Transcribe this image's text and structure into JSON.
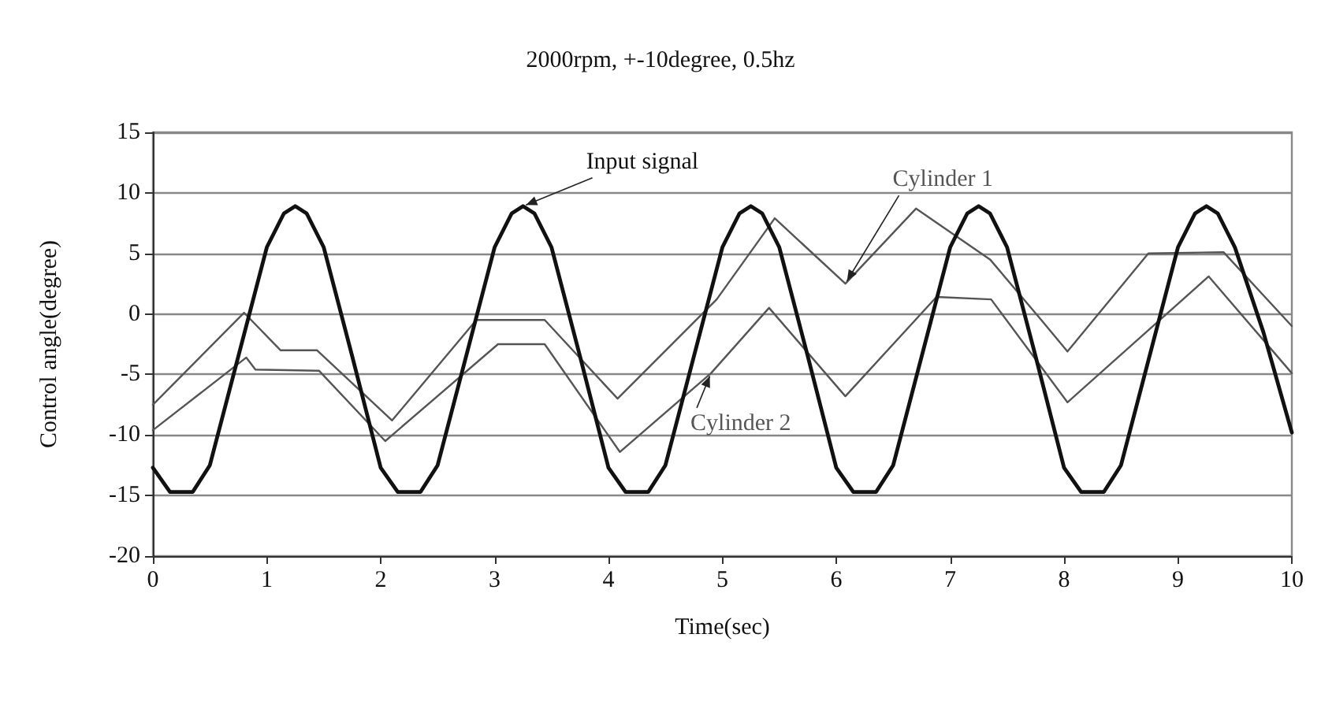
{
  "chart_data": {
    "type": "line",
    "title": "2000rpm, +-10degree, 0.5hz",
    "xlabel": "Time(sec)",
    "ylabel": "Control angle(degree)",
    "xlim": [
      0,
      10
    ],
    "xticks": [
      0,
      1,
      2,
      3,
      4,
      5,
      6,
      7,
      8,
      9,
      10
    ],
    "ylim": [
      -20,
      15
    ],
    "yticks": [
      -20,
      -15,
      -10,
      -5,
      0,
      5,
      10,
      15
    ],
    "grid": "y",
    "legend": false,
    "marker": "none",
    "line_style": "solid",
    "series": [
      {
        "name": "Input signal",
        "color": "#111111",
        "x": [
          0,
          0.15,
          0.35,
          0.5,
          0.75,
          1,
          1.15,
          1.25,
          1.35,
          1.5,
          1.75,
          2,
          2.15,
          2.35,
          2.5,
          2.75,
          3,
          3.15,
          3.25,
          3.35,
          3.5,
          3.75,
          4,
          4.15,
          4.35,
          4.5,
          4.75,
          5,
          5.15,
          5.25,
          5.35,
          5.5,
          5.75,
          6,
          6.15,
          6.35,
          6.5,
          6.75,
          7,
          7.15,
          7.25,
          7.35,
          7.5,
          7.75,
          8,
          8.15,
          8.35,
          8.5,
          8.75,
          9,
          9.15,
          9.25,
          9.35,
          9.5,
          9.75,
          10
        ],
        "values": [
          -12.7,
          -14.7,
          -14.7,
          -12.5,
          -3.5,
          5.5,
          8.3,
          8.9,
          8.3,
          5.5,
          -3.5,
          -12.7,
          -14.7,
          -14.7,
          -12.5,
          -3.5,
          5.5,
          8.3,
          8.9,
          8.3,
          5.5,
          -3.5,
          -12.7,
          -14.7,
          -14.7,
          -12.5,
          -3.5,
          5.5,
          8.3,
          8.9,
          8.3,
          5.5,
          -3.5,
          -12.7,
          -14.7,
          -14.7,
          -12.5,
          -3.5,
          5.5,
          8.3,
          8.9,
          8.3,
          5.5,
          -3.5,
          -12.7,
          -14.7,
          -14.7,
          -12.5,
          -3.5,
          5.5,
          8.3,
          8.9,
          8.3,
          5.5,
          -1.5,
          -9.8
        ]
      },
      {
        "name": "Cylinder 1",
        "color": "#555555",
        "x": [
          0,
          0.8,
          1.12,
          1.44,
          2.1,
          2.84,
          3.44,
          4.08,
          4.95,
          5.46,
          6.08,
          6.7,
          7.35,
          7.8,
          8.03,
          8.74,
          9.4,
          10
        ],
        "values": [
          -7.5,
          0.1,
          -3,
          -3,
          -8.8,
          -0.5,
          -0.5,
          -7,
          1.2,
          7.9,
          2.5,
          8.7,
          4.5,
          -0.5,
          -3.1,
          5,
          5.1,
          -1
        ]
      },
      {
        "name": "Cylinder 2",
        "color": "#555555",
        "x": [
          0,
          0.82,
          0.9,
          1.46,
          2.04,
          3.03,
          3.44,
          4.1,
          4.9,
          5.41,
          6.08,
          6.88,
          7.36,
          8.03,
          9.27,
          10
        ],
        "values": [
          -9.6,
          -3.6,
          -4.6,
          -4.7,
          -10.5,
          -2.5,
          -2.5,
          -11.4,
          -4.9,
          0.5,
          -6.8,
          1.4,
          1.2,
          -7.3,
          3.1,
          -4.9
        ]
      }
    ]
  }
}
